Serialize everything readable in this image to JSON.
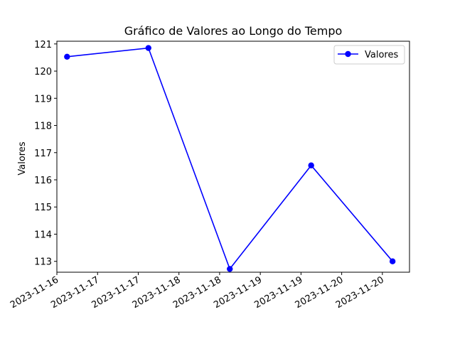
{
  "chart_data": {
    "type": "line",
    "title": "Gráfico de Valores ao Longo do Tempo",
    "xlabel": "",
    "ylabel": "Valores",
    "ylim": [
      112.6,
      121.1
    ],
    "yticks": [
      113,
      114,
      115,
      116,
      117,
      118,
      119,
      120,
      121
    ],
    "x_range": [
      "2023-11-16T00:00",
      "2023-11-20T08:00"
    ],
    "xtick_values": [
      "2023-11-16T00:00",
      "2023-11-16T12:00",
      "2023-11-17T00:00",
      "2023-11-17T12:00",
      "2023-11-18T00:00",
      "2023-11-18T12:00",
      "2023-11-19T00:00",
      "2023-11-19T12:00",
      "2023-11-20T00:00"
    ],
    "xtick_labels": [
      "2023-11-16",
      "2023-11-17",
      "2023-11-17",
      "2023-11-18",
      "2023-11-18",
      "2023-11-19",
      "2023-11-19",
      "2023-11-20",
      "2023-11-20"
    ],
    "grid": false,
    "legend_position": "top-right",
    "series": [
      {
        "name": "Valores",
        "color": "#0000ff",
        "marker": "circle",
        "x": [
          "2023-11-16T03:00",
          "2023-11-17T03:00",
          "2023-11-18T03:00",
          "2023-11-19T03:00",
          "2023-11-20T03:00"
        ],
        "y": [
          120.53,
          120.85,
          112.72,
          116.53,
          113.0
        ]
      }
    ]
  }
}
